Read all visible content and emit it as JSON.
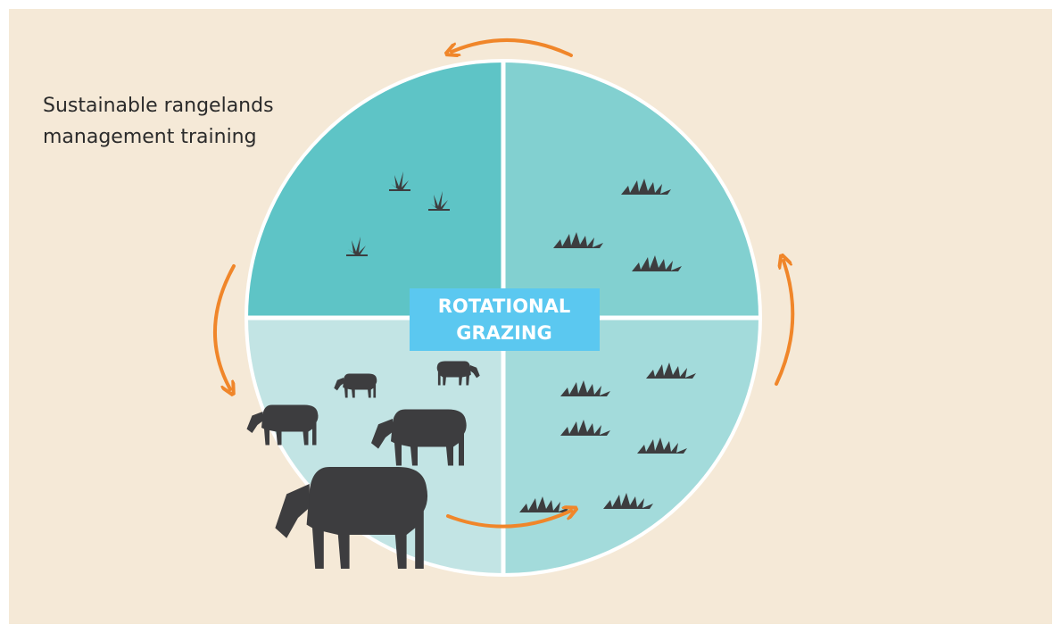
{
  "title": {
    "lines": [
      "Sustainable rangelands",
      "management training"
    ]
  },
  "center_label": {
    "lines": [
      "ROTATIONAL",
      "GRAZING"
    ]
  }
}
